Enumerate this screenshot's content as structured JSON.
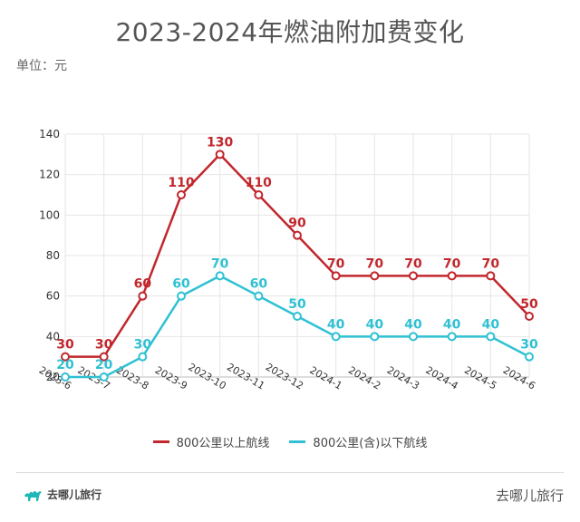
{
  "title": "2023-2024年燃油附加费变化",
  "unit_label": "单位：元",
  "legend": [
    {
      "label": "800公里以上航线",
      "color": "#c1272d"
    },
    {
      "label": "800公里(含)以下航线",
      "color": "#2fc1d3"
    }
  ],
  "brand": {
    "logo_text": "去哪儿旅行",
    "right_text": "去哪儿旅行",
    "icon": "camel-icon"
  },
  "chart_data": {
    "type": "line",
    "categories": [
      "2023-6",
      "2023-7",
      "2023-8",
      "2023-9",
      "2023-10",
      "2023-11",
      "2023-12",
      "2024-1",
      "2024-2",
      "2024-3",
      "2024-4",
      "2024-5",
      "2024-6"
    ],
    "series": [
      {
        "name": "800公里以上航线",
        "color": "#c1272d",
        "values": [
          30,
          30,
          60,
          110,
          130,
          110,
          90,
          70,
          70,
          70,
          70,
          70,
          50
        ]
      },
      {
        "name": "800公里(含)以下航线",
        "color": "#2fc1d3",
        "values": [
          20,
          20,
          30,
          60,
          70,
          60,
          50,
          40,
          40,
          40,
          40,
          40,
          30
        ]
      }
    ],
    "ylim": [
      20,
      140
    ],
    "yticks": [
      20,
      40,
      60,
      80,
      100,
      120,
      140
    ],
    "grid": true
  }
}
